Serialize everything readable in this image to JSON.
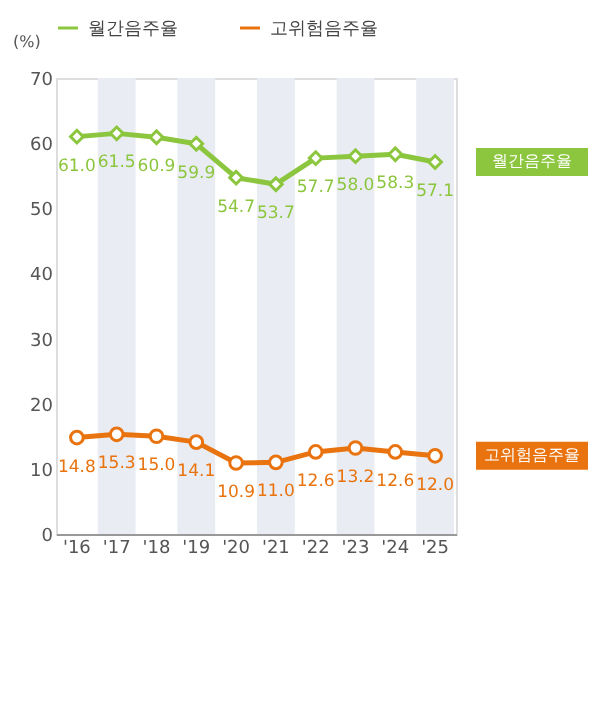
{
  "chart_data": {
    "type": "line",
    "ylabel": "(%)",
    "categories": [
      "'16",
      "'17",
      "'18",
      "'19",
      "'20",
      "'21",
      "'22",
      "'23",
      "'24",
      "'25"
    ],
    "series": [
      {
        "name": "월간음주율",
        "color": "#8cc63e",
        "marker": "diamond",
        "values": [
          61.0,
          61.5,
          60.9,
          59.9,
          54.7,
          53.7,
          57.7,
          58.0,
          58.3,
          57.1
        ],
        "value_labels": [
          "61.0",
          "61.5",
          "60.9",
          "59.9",
          "54.7",
          "53.7",
          "57.7",
          "58.0",
          "58.3",
          "57.1"
        ]
      },
      {
        "name": "고위험음주율",
        "color": "#e8730f",
        "marker": "circle",
        "values": [
          14.8,
          15.3,
          15.0,
          14.1,
          10.9,
          11.0,
          12.6,
          13.2,
          12.6,
          12.0
        ],
        "value_labels": [
          "14.8",
          "15.3",
          "15.0",
          "14.1",
          "10.9",
          "11.0",
          "12.6",
          "13.2",
          "12.6",
          "12.0"
        ]
      }
    ],
    "ylim": [
      0,
      70
    ],
    "yticks": [
      0,
      10,
      20,
      30,
      40,
      50,
      60,
      70
    ],
    "bands": [
      {
        "axis": "x",
        "from": "'17",
        "to": "'17",
        "color": "#e9edf3"
      },
      {
        "axis": "x",
        "from": "'19",
        "to": "'19",
        "color": "#e9edf3"
      },
      {
        "axis": "x",
        "from": "'21",
        "to": "'21",
        "color": "#e9edf3"
      },
      {
        "axis": "x",
        "from": "'23",
        "to": "'23",
        "color": "#e9edf3"
      },
      {
        "axis": "x",
        "from": "'25",
        "to": "'25",
        "color": "#e9edf3"
      }
    ],
    "grid": false,
    "legend": "top"
  }
}
